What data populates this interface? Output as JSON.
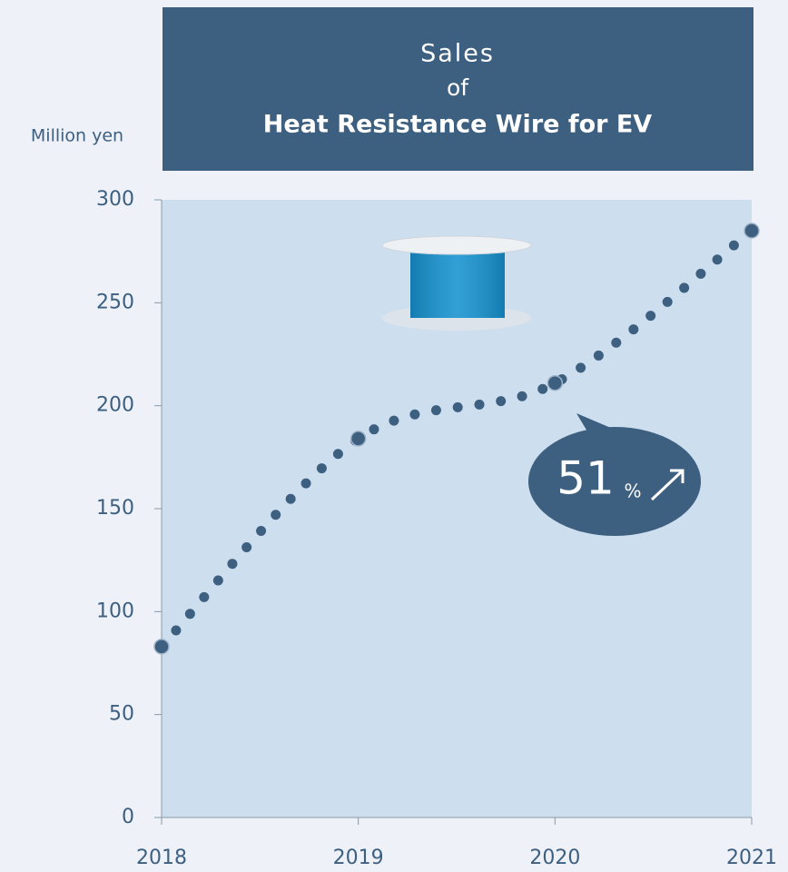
{
  "chart_data": {
    "type": "line",
    "title": [
      "Sales",
      "of",
      "Heat Resistance Wire for EV"
    ],
    "y_label": "Million yen",
    "categories": [
      "2018",
      "2019",
      "2020",
      "2021"
    ],
    "series": [
      {
        "name": "Sales",
        "color": "#3d5f80",
        "values": [
          83,
          184,
          211,
          285
        ]
      }
    ],
    "ylim": [
      0,
      300
    ],
    "yticks": [
      0,
      50,
      100,
      150,
      200,
      250,
      300
    ],
    "callout": {
      "number": "51",
      "unit": "%"
    },
    "background": "#cddeee"
  }
}
